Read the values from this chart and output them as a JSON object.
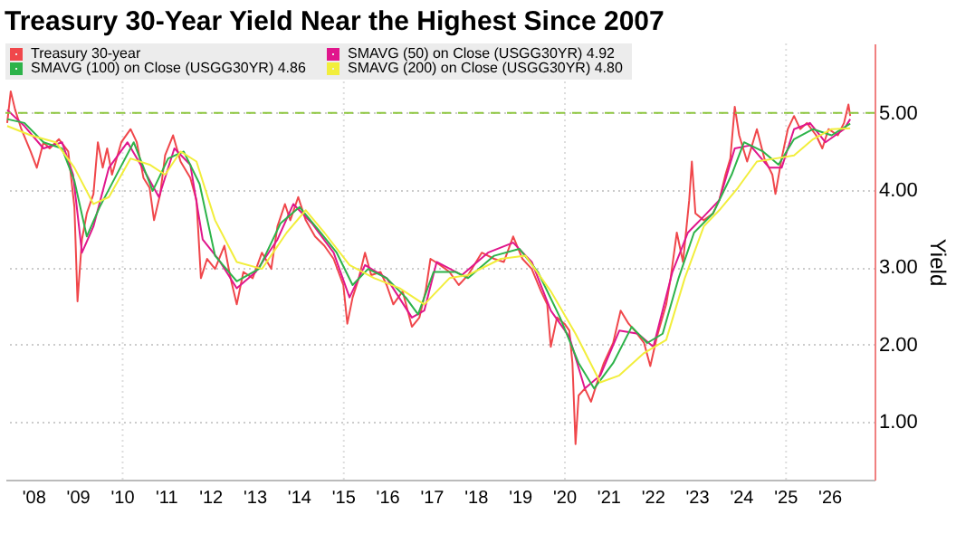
{
  "chart_data": {
    "type": "line",
    "title": "Treasury 30-Year Yield Near the Highest Since 2007",
    "ylabel": "Yield",
    "xlim": [
      2007.35,
      2027.0
    ],
    "ylim": [
      0.25,
      5.9
    ],
    "xticks": [
      {
        "value": 2008,
        "label": "'08"
      },
      {
        "value": 2009,
        "label": "'09"
      },
      {
        "value": 2010,
        "label": "'10"
      },
      {
        "value": 2011,
        "label": "'11"
      },
      {
        "value": 2012,
        "label": "'12"
      },
      {
        "value": 2013,
        "label": "'13"
      },
      {
        "value": 2014,
        "label": "'14"
      },
      {
        "value": 2015,
        "label": "'15"
      },
      {
        "value": 2016,
        "label": "'16"
      },
      {
        "value": 2017,
        "label": "'17"
      },
      {
        "value": 2018,
        "label": "'18"
      },
      {
        "value": 2019,
        "label": "'19"
      },
      {
        "value": 2020,
        "label": "'20"
      },
      {
        "value": 2021,
        "label": "'21"
      },
      {
        "value": 2022,
        "label": "'22"
      },
      {
        "value": 2023,
        "label": "'23"
      },
      {
        "value": 2024,
        "label": "'24"
      },
      {
        "value": 2025,
        "label": "'25"
      },
      {
        "value": 2026,
        "label": "'26"
      }
    ],
    "yticks": [
      {
        "value": 1,
        "label": "1.00"
      },
      {
        "value": 2,
        "label": "2.00"
      },
      {
        "value": 3,
        "label": "3.00"
      },
      {
        "value": 4,
        "label": "4.00"
      },
      {
        "value": 5,
        "label": "5.00"
      }
    ],
    "grid": true,
    "legend": "top left",
    "line_style": "solid",
    "marker": "none",
    "ref_lines": [
      {
        "axis": "y",
        "value": 5.0,
        "color": "#8dc63f",
        "line_style": "dashed"
      }
    ],
    "series": [
      {
        "name": "Treasury 30-year",
        "color": "#f0474b",
        "x": [
          2007.39,
          2007.47,
          2007.57,
          2007.71,
          2007.92,
          2008.06,
          2008.21,
          2008.35,
          2008.56,
          2008.77,
          2008.91,
          2008.98,
          2009.08,
          2009.19,
          2009.34,
          2009.44,
          2009.55,
          2009.65,
          2009.76,
          2009.97,
          2010.18,
          2010.32,
          2010.47,
          2010.61,
          2010.71,
          2010.85,
          2010.96,
          2011.14,
          2011.31,
          2011.53,
          2011.67,
          2011.77,
          2011.91,
          2012.09,
          2012.3,
          2012.44,
          2012.58,
          2012.73,
          2012.94,
          2013.15,
          2013.36,
          2013.5,
          2013.67,
          2013.79,
          2013.97,
          2014.14,
          2014.35,
          2014.56,
          2014.77,
          2014.99,
          2015.08,
          2015.2,
          2015.34,
          2015.48,
          2015.62,
          2015.83,
          2015.97,
          2016.12,
          2016.33,
          2016.54,
          2016.71,
          2016.85,
          2016.96,
          2017.18,
          2017.39,
          2017.6,
          2017.81,
          2018.12,
          2018.4,
          2018.62,
          2018.83,
          2019.04,
          2019.25,
          2019.46,
          2019.6,
          2019.68,
          2019.82,
          2019.99,
          2020.1,
          2020.17,
          2020.24,
          2020.31,
          2020.45,
          2020.59,
          2020.73,
          2020.88,
          2021.09,
          2021.26,
          2021.44,
          2021.58,
          2021.79,
          2021.93,
          2022.08,
          2022.29,
          2022.39,
          2022.53,
          2022.67,
          2022.81,
          2022.87,
          2022.95,
          2023.14,
          2023.35,
          2023.49,
          2023.63,
          2023.74,
          2023.84,
          2023.94,
          2024.12,
          2024.34,
          2024.51,
          2024.69,
          2024.76,
          2024.9,
          2025.04,
          2025.18,
          2025.32,
          2025.47,
          2025.68,
          2025.82,
          2025.96,
          2026.17,
          2026.31,
          2026.41,
          2026.45
        ],
        "values": [
          4.87,
          5.28,
          5.04,
          4.79,
          4.5,
          4.29,
          4.62,
          4.54,
          4.66,
          4.5,
          3.78,
          2.56,
          3.36,
          3.7,
          3.95,
          4.62,
          4.29,
          4.54,
          4.2,
          4.62,
          4.79,
          4.62,
          4.16,
          4.03,
          3.61,
          3.95,
          4.45,
          4.71,
          4.37,
          4.16,
          3.87,
          2.86,
          3.11,
          2.98,
          3.28,
          2.86,
          2.52,
          2.94,
          2.86,
          3.19,
          2.98,
          3.53,
          3.82,
          3.61,
          3.91,
          3.61,
          3.4,
          3.28,
          3.11,
          2.77,
          2.27,
          2.61,
          2.86,
          3.19,
          2.9,
          2.94,
          2.77,
          2.52,
          2.69,
          2.23,
          2.35,
          2.69,
          3.11,
          3.03,
          2.94,
          2.77,
          2.9,
          3.19,
          3.11,
          3.07,
          3.4,
          3.11,
          2.98,
          2.69,
          2.52,
          1.97,
          2.35,
          2.27,
          2.18,
          1.76,
          0.71,
          1.34,
          1.43,
          1.26,
          1.51,
          1.76,
          2.02,
          2.44,
          2.27,
          2.18,
          2.02,
          1.72,
          2.1,
          2.52,
          2.86,
          3.45,
          3.07,
          3.87,
          4.37,
          3.7,
          3.61,
          3.7,
          3.87,
          4.2,
          4.41,
          5.08,
          4.71,
          4.37,
          4.79,
          4.41,
          4.2,
          3.95,
          4.41,
          4.79,
          4.96,
          4.79,
          4.87,
          4.71,
          4.54,
          4.79,
          4.71,
          4.87,
          5.11,
          4.96
        ]
      },
      {
        "name": "SMAVG (50)  on Close (USGG30YR)  4.92",
        "color": "#e0168c",
        "x": [
          2007.39,
          2007.78,
          2008.21,
          2008.63,
          2008.88,
          2009.08,
          2009.34,
          2009.69,
          2010.11,
          2010.54,
          2010.82,
          2011.17,
          2011.53,
          2011.81,
          2012.16,
          2012.58,
          2013.01,
          2013.5,
          2013.86,
          2014.28,
          2014.77,
          2015.13,
          2015.48,
          2015.97,
          2016.54,
          2016.82,
          2017.1,
          2017.67,
          2018.26,
          2018.83,
          2019.25,
          2019.68,
          2020.1,
          2020.45,
          2020.8,
          2021.23,
          2021.65,
          2022.0,
          2022.43,
          2022.78,
          2023.14,
          2023.49,
          2023.84,
          2024.19,
          2024.62,
          2024.9,
          2025.18,
          2025.54,
          2025.89,
          2026.31,
          2026.45
        ],
        "values": [
          5.04,
          4.83,
          4.54,
          4.62,
          4.2,
          3.19,
          3.53,
          4.29,
          4.62,
          4.2,
          3.91,
          4.54,
          4.33,
          3.36,
          3.11,
          2.73,
          2.94,
          3.36,
          3.82,
          3.57,
          3.19,
          2.61,
          3.03,
          2.86,
          2.35,
          2.44,
          3.07,
          2.9,
          3.19,
          3.32,
          3.07,
          2.44,
          2.1,
          1.43,
          1.6,
          2.18,
          2.14,
          1.97,
          2.94,
          3.45,
          3.66,
          3.87,
          4.54,
          4.58,
          4.29,
          4.29,
          4.79,
          4.87,
          4.62,
          4.79,
          4.92
        ]
      },
      {
        "name": "SMAVG (100)  on Close (USGG30YR) 4.86",
        "color": "#2db34a",
        "x": [
          2007.39,
          2007.78,
          2008.21,
          2008.63,
          2008.91,
          2009.19,
          2009.48,
          2009.9,
          2010.25,
          2010.68,
          2011.03,
          2011.38,
          2011.74,
          2012.09,
          2012.58,
          2013.08,
          2013.57,
          2014.0,
          2014.42,
          2014.84,
          2015.2,
          2015.55,
          2015.97,
          2016.4,
          2016.68,
          2017.03,
          2017.53,
          2017.81,
          2018.4,
          2018.97,
          2019.39,
          2019.89,
          2020.31,
          2020.66,
          2021.09,
          2021.51,
          2021.86,
          2022.21,
          2022.57,
          2022.92,
          2023.35,
          2023.77,
          2024.05,
          2024.48,
          2024.83,
          2025.18,
          2025.61,
          2026.03,
          2026.45
        ],
        "values": [
          4.92,
          4.87,
          4.62,
          4.54,
          4.12,
          3.4,
          3.78,
          4.24,
          4.62,
          3.99,
          4.41,
          4.5,
          4.08,
          3.15,
          2.82,
          2.98,
          3.57,
          3.78,
          3.49,
          3.19,
          2.77,
          2.98,
          2.86,
          2.61,
          2.39,
          2.94,
          2.94,
          2.86,
          3.15,
          3.24,
          2.94,
          2.35,
          1.76,
          1.43,
          1.76,
          2.23,
          2.02,
          2.14,
          2.86,
          3.45,
          3.7,
          4.2,
          4.62,
          4.5,
          4.33,
          4.66,
          4.79,
          4.71,
          4.86
        ]
      },
      {
        "name": "SMAVG (200)  on Close (USGG30YR) 4.80",
        "color": "#f2ee3c",
        "x": [
          2007.39,
          2007.92,
          2008.49,
          2008.91,
          2009.34,
          2009.69,
          2010.18,
          2010.61,
          2010.96,
          2011.31,
          2011.67,
          2012.09,
          2012.58,
          2013.15,
          2013.71,
          2014.14,
          2014.56,
          2015.13,
          2015.69,
          2016.26,
          2016.82,
          2017.39,
          2017.81,
          2018.55,
          2019.11,
          2019.68,
          2020.24,
          2020.8,
          2021.23,
          2021.79,
          2022.29,
          2022.71,
          2023.14,
          2023.49,
          2023.91,
          2024.34,
          2024.76,
          2025.18,
          2025.61,
          2026.03,
          2026.45
        ],
        "values": [
          4.83,
          4.71,
          4.62,
          4.29,
          3.82,
          3.91,
          4.41,
          4.33,
          4.2,
          4.5,
          4.37,
          3.61,
          3.07,
          2.98,
          3.45,
          3.74,
          3.45,
          3.03,
          2.86,
          2.73,
          2.52,
          2.86,
          2.9,
          3.11,
          3.15,
          2.69,
          2.14,
          1.51,
          1.6,
          1.89,
          2.06,
          2.86,
          3.53,
          3.74,
          4.03,
          4.37,
          4.41,
          4.45,
          4.66,
          4.79,
          4.8
        ]
      }
    ]
  }
}
